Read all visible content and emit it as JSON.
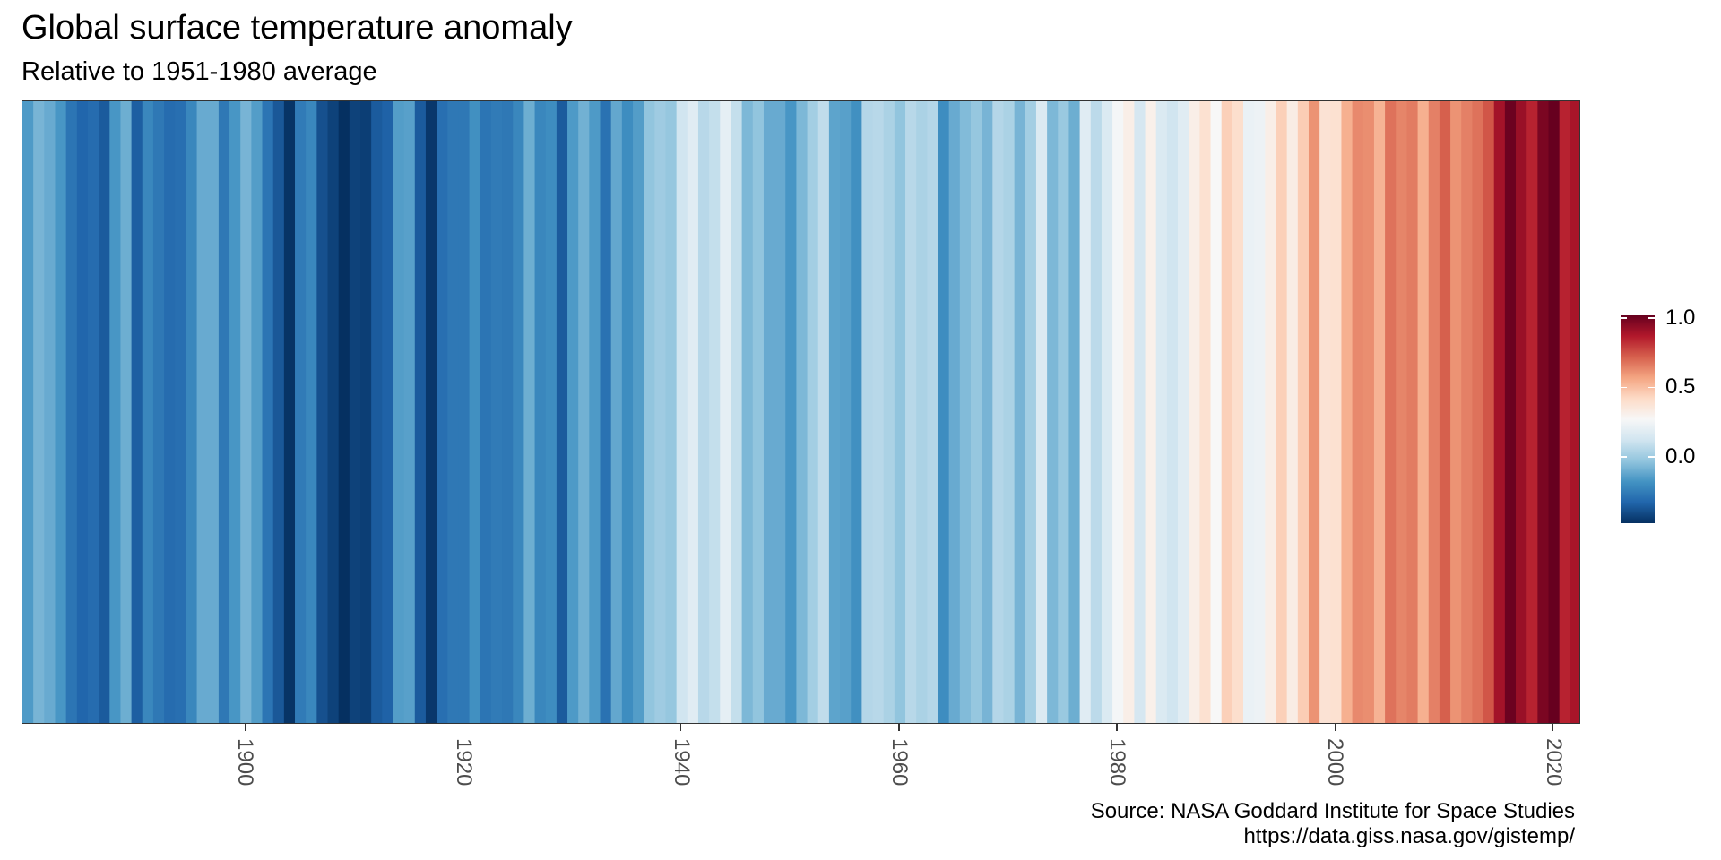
{
  "chart_data": {
    "type": "heatmap",
    "title": "Global surface temperature anomaly",
    "subtitle": "Relative to 1951-1980 average",
    "caption_lines": [
      "Source: NASA Goddard Institute for Space Studies",
      "https://data.giss.nasa.gov/gistemp/"
    ],
    "xlim": [
      1880,
      2023
    ],
    "x_ticks": [
      "1900",
      "1920",
      "1940",
      "1960",
      "1980",
      "2000",
      "2020"
    ],
    "x": [
      1880,
      1881,
      1882,
      1883,
      1884,
      1885,
      1886,
      1887,
      1888,
      1889,
      1890,
      1891,
      1892,
      1893,
      1894,
      1895,
      1896,
      1897,
      1898,
      1899,
      1900,
      1901,
      1902,
      1903,
      1904,
      1905,
      1906,
      1907,
      1908,
      1909,
      1910,
      1911,
      1912,
      1913,
      1914,
      1915,
      1916,
      1917,
      1918,
      1919,
      1920,
      1921,
      1922,
      1923,
      1924,
      1925,
      1926,
      1927,
      1928,
      1929,
      1930,
      1931,
      1932,
      1933,
      1934,
      1935,
      1936,
      1937,
      1938,
      1939,
      1940,
      1941,
      1942,
      1943,
      1944,
      1945,
      1946,
      1947,
      1948,
      1949,
      1950,
      1951,
      1952,
      1953,
      1954,
      1955,
      1956,
      1957,
      1958,
      1959,
      1960,
      1961,
      1962,
      1963,
      1964,
      1965,
      1966,
      1967,
      1968,
      1969,
      1970,
      1971,
      1972,
      1973,
      1974,
      1975,
      1976,
      1977,
      1978,
      1979,
      1980,
      1981,
      1982,
      1983,
      1984,
      1985,
      1986,
      1987,
      1988,
      1989,
      1990,
      1991,
      1992,
      1993,
      1994,
      1995,
      1996,
      1997,
      1998,
      1999,
      2000,
      2001,
      2002,
      2003,
      2004,
      2005,
      2006,
      2007,
      2008,
      2009,
      2010,
      2011,
      2012,
      2013,
      2014,
      2015,
      2016,
      2017,
      2018,
      2019,
      2020,
      2021,
      2022
    ],
    "values": [
      -0.16,
      -0.08,
      -0.11,
      -0.17,
      -0.28,
      -0.33,
      -0.31,
      -0.36,
      -0.17,
      -0.1,
      -0.35,
      -0.22,
      -0.27,
      -0.31,
      -0.3,
      -0.22,
      -0.11,
      -0.11,
      -0.27,
      -0.17,
      -0.08,
      -0.15,
      -0.28,
      -0.37,
      -0.47,
      -0.26,
      -0.22,
      -0.39,
      -0.43,
      -0.48,
      -0.43,
      -0.44,
      -0.36,
      -0.34,
      -0.15,
      -0.14,
      -0.36,
      -0.46,
      -0.3,
      -0.27,
      -0.27,
      -0.19,
      -0.28,
      -0.26,
      -0.27,
      -0.22,
      -0.1,
      -0.22,
      -0.2,
      -0.36,
      -0.16,
      -0.09,
      -0.16,
      -0.29,
      -0.12,
      -0.2,
      -0.15,
      -0.03,
      -0.0,
      -0.02,
      0.12,
      0.18,
      0.06,
      0.09,
      0.2,
      0.09,
      -0.07,
      -0.03,
      -0.11,
      -0.11,
      -0.17,
      -0.07,
      0.01,
      0.08,
      -0.13,
      -0.14,
      -0.19,
      0.05,
      0.06,
      0.03,
      -0.03,
      0.06,
      0.03,
      0.05,
      -0.2,
      -0.11,
      -0.06,
      -0.02,
      -0.08,
      0.05,
      0.03,
      -0.08,
      0.01,
      0.16,
      -0.07,
      -0.01,
      -0.1,
      0.18,
      0.07,
      0.16,
      0.26,
      0.32,
      0.14,
      0.31,
      0.16,
      0.12,
      0.18,
      0.32,
      0.39,
      0.27,
      0.45,
      0.4,
      0.22,
      0.23,
      0.32,
      0.45,
      0.33,
      0.46,
      0.61,
      0.38,
      0.39,
      0.54,
      0.63,
      0.62,
      0.53,
      0.68,
      0.64,
      0.66,
      0.54,
      0.65,
      0.72,
      0.61,
      0.65,
      0.68,
      0.74,
      0.9,
      1.01,
      0.92,
      0.85,
      0.98,
      1.02,
      0.85,
      0.89
    ],
    "colorbar": {
      "ticks": [
        "1.0",
        "0.5",
        "0.0"
      ],
      "tick_values": [
        1.0,
        0.5,
        0.0
      ],
      "limits": [
        -0.48,
        1.02
      ],
      "palette": [
        "#053061",
        "#2166ac",
        "#4393c3",
        "#92c5de",
        "#d1e5f0",
        "#f7f7f7",
        "#fddbc7",
        "#f4a582",
        "#d6604d",
        "#b2182b",
        "#67001f"
      ]
    }
  }
}
